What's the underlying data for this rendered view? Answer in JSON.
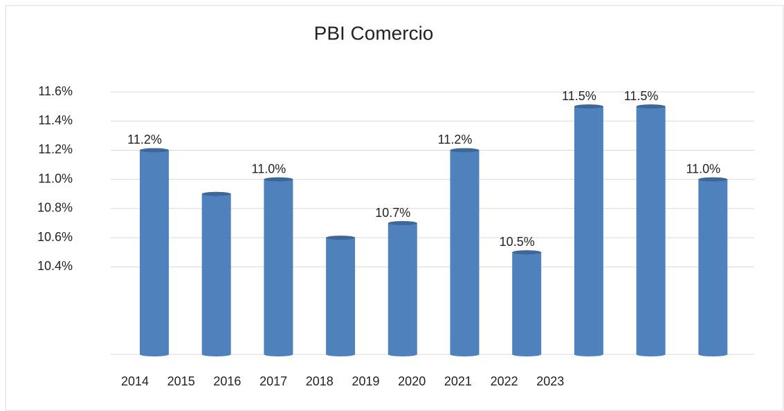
{
  "chart_data": {
    "type": "bar",
    "title": "PBI Comercio",
    "categories": [
      "2014",
      "2015",
      "2016",
      "2017",
      "2018",
      "2019",
      "2020",
      "2021",
      "2022",
      "2023"
    ],
    "values": [
      11.2,
      10.9,
      11.0,
      10.6,
      10.7,
      11.2,
      10.5,
      11.5,
      11.5,
      11.0
    ],
    "value_labels": [
      "11.2%",
      null,
      "11.0%",
      null,
      "10.7%",
      "11.2%",
      "10.5%",
      "11.5%",
      "11.5%",
      "11.0%"
    ],
    "color": "#4f81bd",
    "ylim": [
      9.8,
      11.6
    ],
    "yticks": [
      {
        "value": 10.4,
        "label": "10.4%"
      },
      {
        "value": 10.6,
        "label": "10.6%"
      },
      {
        "value": 10.8,
        "label": "10.8%"
      },
      {
        "value": 11.0,
        "label": "11.0%"
      },
      {
        "value": 11.2,
        "label": "11.2%"
      },
      {
        "value": 11.4,
        "label": "11.4%"
      },
      {
        "value": 11.6,
        "label": "11.6%"
      }
    ],
    "grid": true
  }
}
